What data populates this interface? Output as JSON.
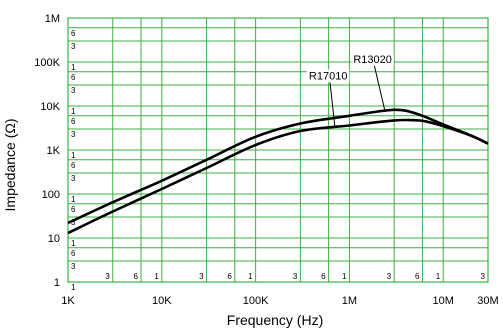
{
  "chart_data": {
    "type": "line",
    "xlabel": "Frequency (Hz)",
    "ylabel": "Impedance (Ω)",
    "x_scale": "log",
    "y_scale": "log",
    "xlim": [
      1000,
      30000000
    ],
    "ylim": [
      1,
      1000000
    ],
    "grid": true,
    "grid_color": "#3cb043",
    "x_ticks": [
      {
        "value": 1000,
        "label": "1K"
      },
      {
        "value": 10000,
        "label": "10K"
      },
      {
        "value": 100000,
        "label": "100K"
      },
      {
        "value": 1000000,
        "label": "1M"
      },
      {
        "value": 10000000,
        "label": "10M"
      },
      {
        "value": 30000000,
        "label": "30M"
      }
    ],
    "y_ticks": [
      {
        "value": 1,
        "label": "1"
      },
      {
        "value": 10,
        "label": "10"
      },
      {
        "value": 100,
        "label": "100"
      },
      {
        "value": 1000,
        "label": "1K"
      },
      {
        "value": 10000,
        "label": "10K"
      },
      {
        "value": 100000,
        "label": "100K"
      },
      {
        "value": 1000000,
        "label": "1M"
      }
    ],
    "x_minor_labels": [
      {
        "value": 3000,
        "label": "3"
      },
      {
        "value": 6000,
        "label": "6"
      },
      {
        "value": 10000,
        "label": "1"
      },
      {
        "value": 30000,
        "label": "3"
      },
      {
        "value": 60000,
        "label": "6"
      },
      {
        "value": 100000,
        "label": "1"
      },
      {
        "value": 300000,
        "label": "3"
      },
      {
        "value": 600000,
        "label": "6"
      },
      {
        "value": 1000000,
        "label": "1"
      },
      {
        "value": 3000000,
        "label": "3"
      },
      {
        "value": 6000000,
        "label": "6"
      },
      {
        "value": 10000000,
        "label": "1"
      },
      {
        "value": 30000000,
        "label": "3"
      }
    ],
    "y_minor_labels": [
      {
        "value": 100000,
        "label": "1"
      },
      {
        "value": 600000,
        "label": "6"
      },
      {
        "value": 300000,
        "label": "3"
      },
      {
        "value": 10000,
        "label": "1"
      },
      {
        "value": 60000,
        "label": "6"
      },
      {
        "value": 30000,
        "label": "3"
      },
      {
        "value": 1000,
        "label": "1"
      },
      {
        "value": 6000,
        "label": "6"
      },
      {
        "value": 3000,
        "label": "3"
      },
      {
        "value": 100,
        "label": "1"
      },
      {
        "value": 600,
        "label": "6"
      },
      {
        "value": 300,
        "label": "3"
      },
      {
        "value": 10,
        "label": "1"
      },
      {
        "value": 60,
        "label": "6"
      },
      {
        "value": 30,
        "label": "3"
      },
      {
        "value": 1,
        "label": "1"
      },
      {
        "value": 6,
        "label": "6"
      },
      {
        "value": 3,
        "label": "3"
      }
    ],
    "series": [
      {
        "name": "R13020",
        "color": "#000000",
        "points": [
          [
            1000,
            22
          ],
          [
            3000,
            65
          ],
          [
            10000,
            200
          ],
          [
            30000,
            600
          ],
          [
            100000,
            2000
          ],
          [
            300000,
            4000
          ],
          [
            1000000,
            6000
          ],
          [
            2000000,
            7500
          ],
          [
            3000000,
            8200
          ],
          [
            4000000,
            7800
          ],
          [
            6000000,
            6000
          ],
          [
            10000000,
            3800
          ],
          [
            20000000,
            2100
          ],
          [
            30000000,
            1400
          ]
        ]
      },
      {
        "name": "R17010",
        "color": "#000000",
        "points": [
          [
            1000,
            13
          ],
          [
            3000,
            40
          ],
          [
            10000,
            130
          ],
          [
            30000,
            390
          ],
          [
            100000,
            1300
          ],
          [
            300000,
            2700
          ],
          [
            1000000,
            3600
          ],
          [
            2000000,
            4300
          ],
          [
            3000000,
            4700
          ],
          [
            4000000,
            4800
          ],
          [
            6000000,
            4600
          ],
          [
            10000000,
            3500
          ],
          [
            20000000,
            2100
          ],
          [
            30000000,
            1400
          ]
        ]
      }
    ],
    "annotations": [
      {
        "series": "R13020",
        "text": "R13020",
        "label_at": [
          1100000,
          95000
        ],
        "points_to": [
          2400000,
          7500
        ]
      },
      {
        "series": "R17010",
        "text": "R17010",
        "label_at": [
          370000,
          40000
        ],
        "points_to": [
          700000,
          3300
        ]
      }
    ]
  }
}
